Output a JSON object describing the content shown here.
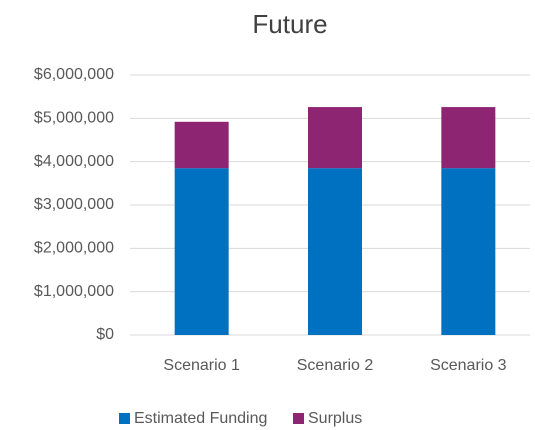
{
  "chart_data": {
    "type": "stacked_bar",
    "title": "Future",
    "categories": [
      "Scenario 1",
      "Scenario 2",
      "Scenario 3"
    ],
    "series": [
      {
        "name": "Estimated Funding",
        "color": "#0070c0",
        "values": [
          3850000,
          3850000,
          3850000
        ]
      },
      {
        "name": "Surplus",
        "color": "#8e2572",
        "values": [
          1070000,
          1410000,
          1410000
        ]
      }
    ],
    "ylim": [
      0,
      6000000
    ],
    "yticks": [
      {
        "value": 0,
        "label": "$0"
      },
      {
        "value": 1000000,
        "label": "$1,000,000"
      },
      {
        "value": 2000000,
        "label": "$2,000,000"
      },
      {
        "value": 3000000,
        "label": "$3,000,000"
      },
      {
        "value": 4000000,
        "label": "$4,000,000"
      },
      {
        "value": 5000000,
        "label": "$5,000,000"
      },
      {
        "value": 6000000,
        "label": "$6,000,000"
      }
    ],
    "grid": true,
    "legend": "bottom"
  }
}
